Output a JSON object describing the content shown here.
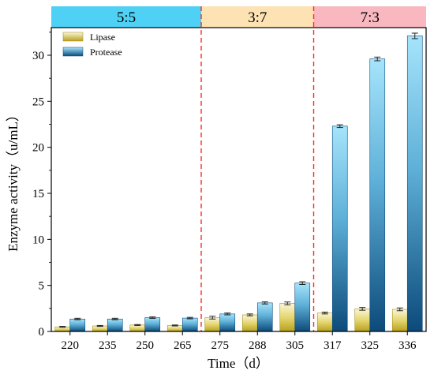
{
  "chart_data": {
    "type": "bar",
    "xlabel": "Time（d）",
    "ylabel": "Enzyme activity（u/mL）",
    "ylim": [
      0,
      33
    ],
    "yticks": [
      0,
      5,
      10,
      15,
      20,
      25,
      30
    ],
    "categories": [
      "220",
      "235",
      "250",
      "265",
      "275",
      "288",
      "305",
      "317",
      "325",
      "336"
    ],
    "series": [
      {
        "name": "Lipase",
        "values": [
          0.5,
          0.6,
          0.7,
          0.65,
          1.5,
          1.8,
          3.05,
          2.0,
          2.45,
          2.4
        ],
        "errors": [
          0.05,
          0.05,
          0.05,
          0.05,
          0.15,
          0.1,
          0.15,
          0.1,
          0.15,
          0.15
        ],
        "color": "#d8c840"
      },
      {
        "name": "Protease",
        "values": [
          1.35,
          1.35,
          1.5,
          1.45,
          1.9,
          3.1,
          5.25,
          22.3,
          29.6,
          32.1
        ],
        "errors": [
          0.08,
          0.08,
          0.08,
          0.08,
          0.1,
          0.12,
          0.15,
          0.15,
          0.2,
          0.3
        ],
        "color": "#5ab4e0"
      }
    ],
    "phases": [
      {
        "label": "5:5",
        "color": "#4fd1f5",
        "from": 0,
        "to": 4
      },
      {
        "label": "3:7",
        "color": "#fde3b4",
        "from": 4,
        "to": 7
      },
      {
        "label": "7:3",
        "color": "#f9b7bf",
        "from": 7,
        "to": 10
      }
    ],
    "legend_position": "top-left",
    "divider_color": "#ff2a2a",
    "grid": false
  }
}
